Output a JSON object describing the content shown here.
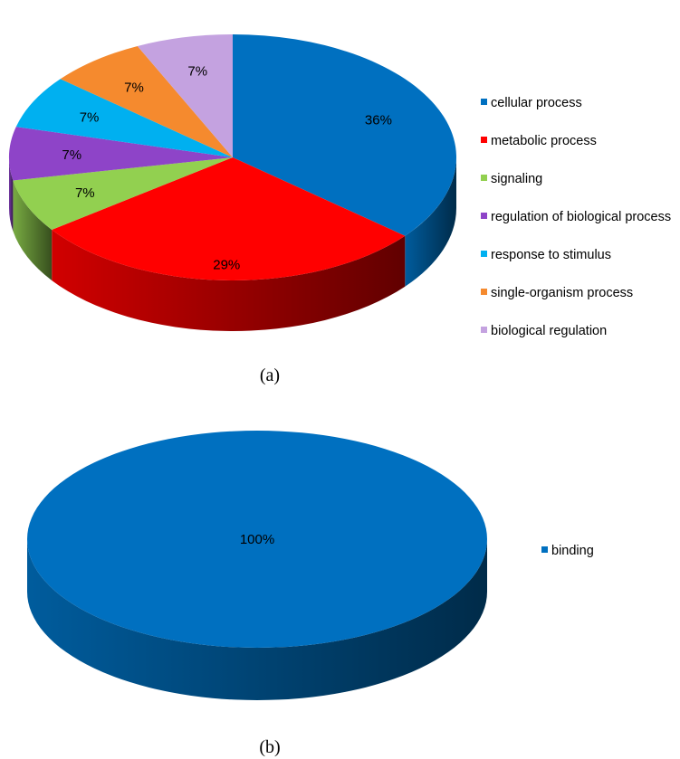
{
  "chart_data": [
    {
      "type": "pie",
      "caption": "(a)",
      "title": "",
      "categories": [
        "cellular process",
        "metabolic process",
        "signaling",
        "regulation of biological process",
        "response to stimulus",
        "single-organism process",
        "biological regulation"
      ],
      "values": [
        36,
        29,
        7,
        7,
        7,
        7,
        7
      ],
      "labels": [
        "36%",
        "29%",
        "7%",
        "7%",
        "7%",
        "7%",
        "7%"
      ],
      "colors": [
        "#0070C0",
        "#FF0000",
        "#92D050",
        "#8E44C8",
        "#00B0F0",
        "#F58A2E",
        "#C4A2E0"
      ],
      "legend_position": "right"
    },
    {
      "type": "pie",
      "caption": "(b)",
      "title": "",
      "categories": [
        "binding"
      ],
      "values": [
        100
      ],
      "labels": [
        "100%"
      ],
      "colors": [
        "#0070C0"
      ],
      "legend_position": "right"
    }
  ]
}
